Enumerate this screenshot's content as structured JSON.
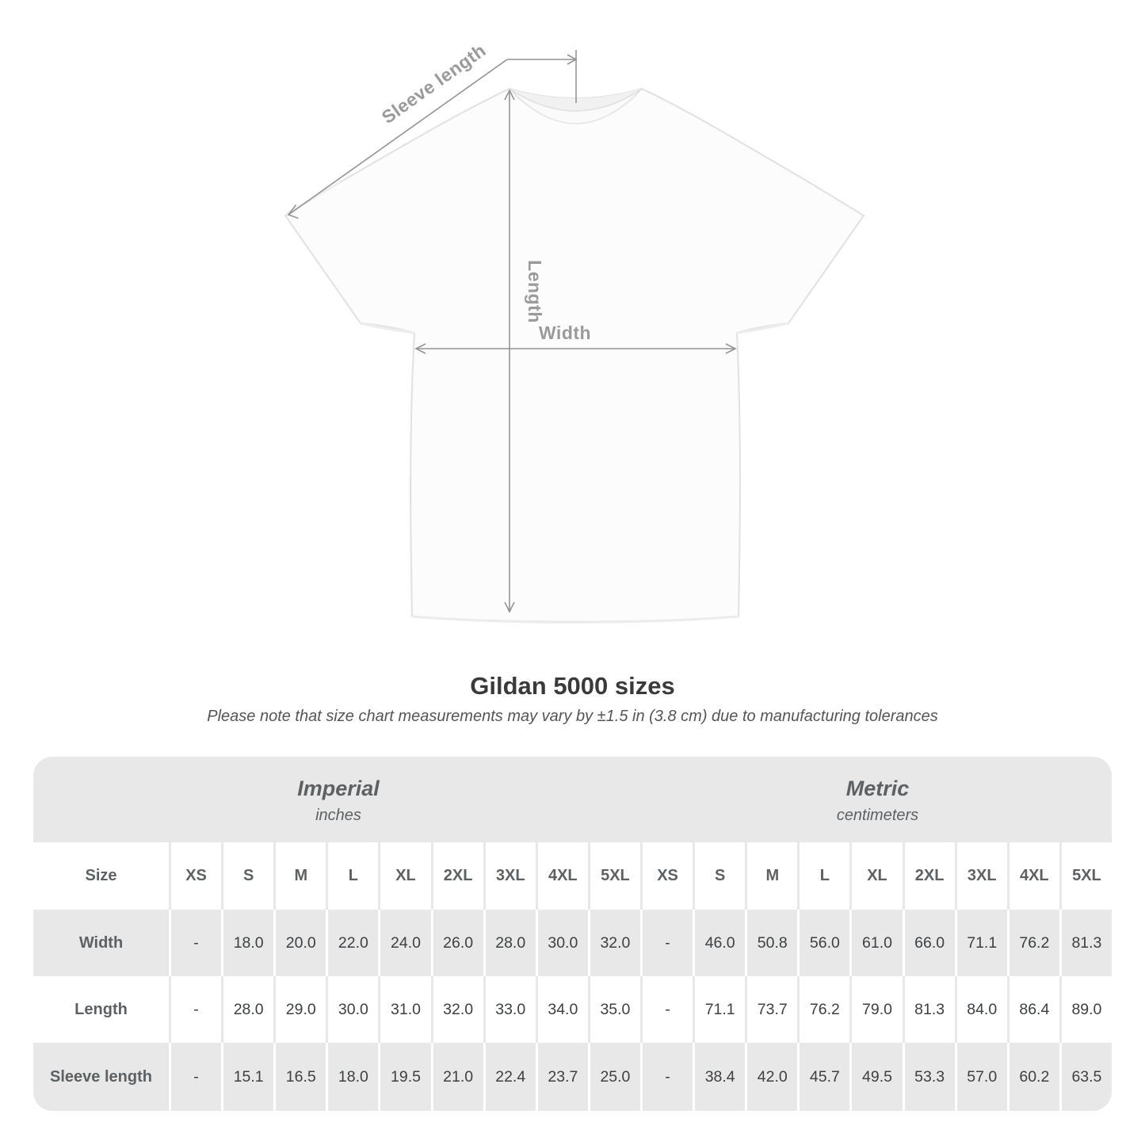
{
  "diagram": {
    "sleeve_length_label": "Sleeve length",
    "length_label": "Length",
    "width_label": "Width"
  },
  "title": "Gildan 5000 sizes",
  "note": "Please note that size chart measurements may vary by ±1.5 in (3.8 cm) due to manufacturing tolerances",
  "table": {
    "groups": [
      {
        "label": "Imperial",
        "sublabel": "inches"
      },
      {
        "label": "Metric",
        "sublabel": "centimeters"
      }
    ],
    "size_header": "Size",
    "sizes": [
      "XS",
      "S",
      "M",
      "L",
      "XL",
      "2XL",
      "3XL",
      "4XL",
      "5XL"
    ],
    "rows": [
      {
        "label": "Width",
        "imperial": [
          "-",
          "18.0",
          "20.0",
          "22.0",
          "24.0",
          "26.0",
          "28.0",
          "30.0",
          "32.0"
        ],
        "metric": [
          "-",
          "46.0",
          "50.8",
          "56.0",
          "61.0",
          "66.0",
          "71.1",
          "76.2",
          "81.3"
        ]
      },
      {
        "label": "Length",
        "imperial": [
          "-",
          "28.0",
          "29.0",
          "30.0",
          "31.0",
          "32.0",
          "33.0",
          "34.0",
          "35.0"
        ],
        "metric": [
          "-",
          "71.1",
          "73.7",
          "76.2",
          "79.0",
          "81.3",
          "84.0",
          "86.4",
          "89.0"
        ]
      },
      {
        "label": "Sleeve length",
        "imperial": [
          "-",
          "15.1",
          "16.5",
          "18.0",
          "19.5",
          "21.0",
          "22.4",
          "23.7",
          "25.0"
        ],
        "metric": [
          "-",
          "38.4",
          "42.0",
          "45.7",
          "49.5",
          "53.3",
          "57.0",
          "60.2",
          "63.5"
        ]
      }
    ]
  },
  "colors": {
    "measurement_gray": "#949494",
    "table_band_gray": "#e8e8e8",
    "title_color": "#3a3a3a",
    "note_color": "#555555",
    "value_color": "#3d4043",
    "header_color": "#5d6163"
  }
}
